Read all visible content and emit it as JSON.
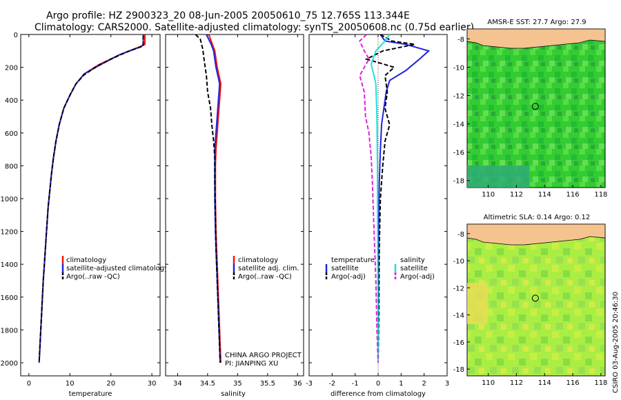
{
  "header": {
    "line1": "Argo profile: HZ 2900323_20 08-Jun-2005 20050610_75 12.765S 113.344E",
    "line2": "Climatology: CARS2000. Satellite-adjusted climatology: synTS_20050608.nc (0.75d earlier)"
  },
  "footer": {
    "project": "CHINA ARGO PROJECT",
    "pi": "PI: JIANPING XU",
    "stamp": "CSIRO 03-Aug-2005 20:46:30"
  },
  "colors": {
    "climatology": "#ee1111",
    "satellite": "#2222dd",
    "argo": "#000000",
    "sal_satellite": "#22dddd",
    "sal_argo": "#dd22dd",
    "land": "#f5c38f",
    "sst_ocean": "#33cc33",
    "sla_ocean": "#aaee44"
  },
  "chart_data": [
    {
      "type": "line",
      "xlabel": "temperature",
      "ylabel": "",
      "xlim": [
        -2,
        32
      ],
      "ylim": [
        2080,
        0
      ],
      "xticks": [
        0,
        10,
        20,
        30
      ],
      "yticks": [
        0,
        200,
        400,
        600,
        800,
        1000,
        1200,
        1400,
        1600,
        1800,
        2000
      ],
      "legend_position": "center-right",
      "series": [
        {
          "name": "climatology",
          "color": "#ee1111",
          "dash": "solid",
          "points": [
            [
              28.3,
              0
            ],
            [
              28.3,
              60
            ],
            [
              27.5,
              70
            ],
            [
              22,
              125
            ],
            [
              17,
              185
            ],
            [
              13.5,
              240
            ],
            [
              11.5,
              300
            ],
            [
              10,
              370
            ],
            [
              8.5,
              450
            ],
            [
              7.4,
              550
            ],
            [
              6.6,
              650
            ],
            [
              6,
              750
            ],
            [
              5.5,
              850
            ],
            [
              5.1,
              950
            ],
            [
              4.7,
              1050
            ],
            [
              4.3,
              1200
            ],
            [
              3.9,
              1350
            ],
            [
              3.5,
              1500
            ],
            [
              3.2,
              1650
            ],
            [
              2.9,
              1800
            ],
            [
              2.6,
              1950
            ],
            [
              2.5,
              2000
            ]
          ]
        },
        {
          "name": "satellite-adjusted climatology",
          "color": "#2222dd",
          "dash": "solid",
          "points": [
            [
              27.9,
              0
            ],
            [
              27.9,
              60
            ],
            [
              27.3,
              75
            ],
            [
              22,
              125
            ],
            [
              17,
              190
            ],
            [
              13.5,
              240
            ],
            [
              11.5,
              300
            ],
            [
              10,
              370
            ],
            [
              8.5,
              450
            ],
            [
              7.4,
              550
            ],
            [
              6.6,
              650
            ],
            [
              6,
              750
            ],
            [
              5.5,
              850
            ],
            [
              5.1,
              950
            ],
            [
              4.7,
              1050
            ],
            [
              4.3,
              1200
            ],
            [
              3.9,
              1350
            ],
            [
              3.5,
              1500
            ],
            [
              3.2,
              1650
            ],
            [
              2.9,
              1800
            ],
            [
              2.6,
              1950
            ],
            [
              2.5,
              2000
            ]
          ]
        },
        {
          "name": "Argo(..raw -QC)",
          "color": "#000000",
          "dash": "dashed",
          "points": [
            [
              27.9,
              5
            ],
            [
              27.9,
              70
            ],
            [
              24,
              105
            ],
            [
              20,
              150
            ],
            [
              16.5,
              195
            ],
            [
              13.5,
              245
            ],
            [
              11.5,
              300
            ],
            [
              10,
              370
            ],
            [
              8.5,
              450
            ],
            [
              7.4,
              550
            ],
            [
              6.6,
              650
            ],
            [
              6,
              750
            ],
            [
              5.5,
              850
            ],
            [
              5.1,
              950
            ],
            [
              4.7,
              1050
            ],
            [
              4.3,
              1200
            ],
            [
              3.9,
              1350
            ],
            [
              3.5,
              1500
            ],
            [
              3.2,
              1650
            ],
            [
              2.9,
              1800
            ],
            [
              2.6,
              1950
            ],
            [
              2.5,
              2000
            ]
          ]
        }
      ]
    },
    {
      "type": "line",
      "xlabel": "salinity",
      "ylabel": "",
      "xlim": [
        33.8,
        36.1
      ],
      "ylim": [
        2080,
        0
      ],
      "xticks": [
        34,
        34.5,
        35,
        35.5,
        36
      ],
      "legend_position": "center-right",
      "series": [
        {
          "name": "climatology",
          "color": "#ee1111",
          "dash": "solid",
          "points": [
            [
              34.52,
              0
            ],
            [
              34.58,
              60
            ],
            [
              34.62,
              100
            ],
            [
              34.66,
              200
            ],
            [
              34.72,
              300
            ],
            [
              34.7,
              400
            ],
            [
              34.68,
              500
            ],
            [
              34.66,
              600
            ],
            [
              34.64,
              700
            ],
            [
              34.63,
              800
            ],
            [
              34.63,
              1000
            ],
            [
              34.64,
              1200
            ],
            [
              34.66,
              1400
            ],
            [
              34.68,
              1600
            ],
            [
              34.7,
              1800
            ],
            [
              34.72,
              2000
            ]
          ]
        },
        {
          "name": "satellite adj. clim.",
          "color": "#2222dd",
          "dash": "solid",
          "points": [
            [
              34.48,
              0
            ],
            [
              34.56,
              60
            ],
            [
              34.6,
              100
            ],
            [
              34.64,
              200
            ],
            [
              34.7,
              300
            ],
            [
              34.68,
              400
            ],
            [
              34.66,
              500
            ],
            [
              34.64,
              600
            ],
            [
              34.62,
              700
            ],
            [
              34.62,
              800
            ],
            [
              34.62,
              1000
            ],
            [
              34.63,
              1200
            ],
            [
              34.65,
              1400
            ],
            [
              34.67,
              1600
            ],
            [
              34.69,
              1800
            ],
            [
              34.71,
              2000
            ]
          ]
        },
        {
          "name": "Argo(..raw -QC)",
          "color": "#000000",
          "dash": "dashed",
          "points": [
            [
              34.3,
              0
            ],
            [
              34.38,
              30
            ],
            [
              34.42,
              90
            ],
            [
              34.44,
              150
            ],
            [
              34.48,
              250
            ],
            [
              34.5,
              350
            ],
            [
              34.55,
              450
            ],
            [
              34.57,
              550
            ],
            [
              34.6,
              650
            ],
            [
              34.62,
              750
            ],
            [
              34.62,
              900
            ],
            [
              34.63,
              1100
            ],
            [
              34.64,
              1300
            ],
            [
              34.66,
              1500
            ],
            [
              34.68,
              1700
            ],
            [
              34.71,
              2000
            ]
          ]
        }
      ]
    },
    {
      "type": "line",
      "xlabel": "difference from climatology",
      "ylabel": "",
      "xlim": [
        -3,
        3
      ],
      "ylim": [
        2080,
        0
      ],
      "xticks": [
        -3,
        -2,
        -1,
        0,
        1,
        2,
        3
      ],
      "legend_position": "center",
      "series": [
        {
          "name": "temperature satellite",
          "color": "#2222dd",
          "dash": "solid",
          "points": [
            [
              0.1,
              0
            ],
            [
              0.3,
              40
            ],
            [
              1.2,
              60
            ],
            [
              2.2,
              100
            ],
            [
              1.8,
              150
            ],
            [
              1.2,
              220
            ],
            [
              0.5,
              280
            ],
            [
              0.35,
              350
            ],
            [
              0.25,
              450
            ],
            [
              0.15,
              550
            ],
            [
              0.1,
              700
            ],
            [
              0.05,
              900
            ],
            [
              0.02,
              1200
            ],
            [
              0.01,
              1600
            ],
            [
              0,
              2000
            ]
          ]
        },
        {
          "name": "temperature Argo(-adj)",
          "color": "#000000",
          "dash": "dashed",
          "points": [
            [
              0.1,
              0
            ],
            [
              0.6,
              40
            ],
            [
              1.6,
              60
            ],
            [
              0.2,
              100
            ],
            [
              -0.5,
              150
            ],
            [
              0.7,
              200
            ],
            [
              0.3,
              250
            ],
            [
              0.4,
              350
            ],
            [
              0.3,
              450
            ],
            [
              0.5,
              550
            ],
            [
              0.3,
              650
            ],
            [
              0.2,
              800
            ],
            [
              0.1,
              1000
            ],
            [
              0.05,
              1300
            ],
            [
              0.03,
              1700
            ],
            [
              0,
              2000
            ]
          ]
        },
        {
          "name": "salinity satellite",
          "color": "#22dddd",
          "dash": "solid",
          "points": [
            [
              0.5,
              0
            ],
            [
              0.3,
              40
            ],
            [
              -0.1,
              100
            ],
            [
              -0.3,
              180
            ],
            [
              -0.1,
              300
            ],
            [
              -0.05,
              500
            ],
            [
              -0.03,
              800
            ],
            [
              -0.02,
              1200
            ],
            [
              -0.01,
              1600
            ],
            [
              0,
              2000
            ]
          ]
        },
        {
          "name": "salinity Argo(-adj)",
          "color": "#dd22dd",
          "dash": "dashed",
          "points": [
            [
              -0.5,
              0
            ],
            [
              -0.8,
              40
            ],
            [
              -0.6,
              100
            ],
            [
              -0.4,
              150
            ],
            [
              -0.8,
              250
            ],
            [
              -0.6,
              350
            ],
            [
              -0.55,
              500
            ],
            [
              -0.4,
              600
            ],
            [
              -0.3,
              750
            ],
            [
              -0.25,
              900
            ],
            [
              -0.2,
              1100
            ],
            [
              -0.15,
              1300
            ],
            [
              -0.1,
              1500
            ],
            [
              -0.05,
              1800
            ],
            [
              0,
              2000
            ]
          ]
        }
      ]
    },
    {
      "type": "heatmap",
      "title": "AMSR-E SST: 27.7 Argo: 27.9",
      "xlim": [
        108.5,
        118.3
      ],
      "ylim": [
        -18.5,
        -7.3
      ],
      "xticks": [
        110,
        112,
        114,
        116,
        118
      ],
      "yticks": [
        -8,
        -10,
        -12,
        -14,
        -16,
        -18
      ],
      "marker": {
        "lon": 113.344,
        "lat": -12.765
      }
    },
    {
      "type": "heatmap",
      "title": "Altimetric SLA: 0.14 Argo: 0.12",
      "xlim": [
        108.5,
        118.3
      ],
      "ylim": [
        -18.5,
        -7.3
      ],
      "xticks": [
        110,
        112,
        114,
        116,
        118
      ],
      "yticks": [
        -8,
        -10,
        -12,
        -14,
        -16,
        -18
      ],
      "marker": {
        "lon": 113.344,
        "lat": -12.765
      }
    }
  ]
}
